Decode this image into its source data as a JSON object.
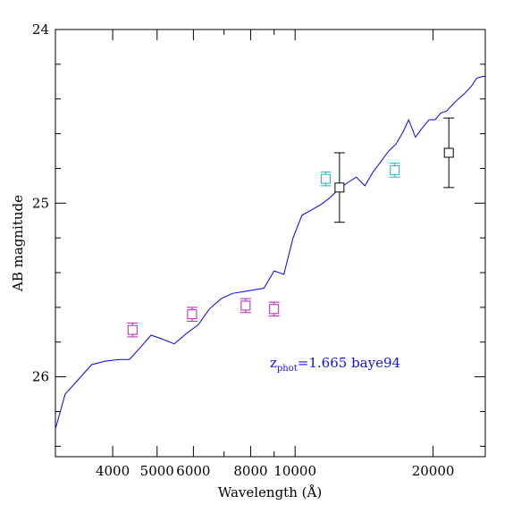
{
  "chart_data": {
    "type": "scatter",
    "title": "",
    "xlabel": "Wavelength (Å)",
    "ylabel": "AB magnitude",
    "xscale": "log",
    "xlim": [
      3000,
      26000
    ],
    "ylim": [
      26.46,
      24.0
    ],
    "y_inverted": true,
    "grid": false,
    "x_major_ticks": [
      4000,
      5000,
      6000,
      8000,
      10000,
      20000
    ],
    "x_tick_labels": [
      "4000",
      "5000",
      "6000",
      "8000",
      "10000",
      "20000"
    ],
    "x_minor_ticks": [
      3000,
      7000,
      9000
    ],
    "y_major_ticks": [
      24,
      25,
      26
    ],
    "y_tick_labels": [
      "24",
      "25",
      "26"
    ],
    "y_minor_ticks": [
      24.2,
      24.4,
      24.6,
      24.8,
      25.2,
      25.4,
      25.6,
      25.8,
      26.2,
      26.4
    ],
    "annotation": {
      "prefix": "z",
      "subscript": "phot",
      "text": "=1.665 baye94",
      "color": "#1010ee"
    },
    "series": [
      {
        "color": "#0000ff",
        "style": "line",
        "x": [
          3000,
          3150,
          3600,
          3850,
          4150,
          4350,
          4600,
          4850,
          5100,
          5450,
          5800,
          6150,
          6500,
          6900,
          7300,
          7700,
          8100,
          8550,
          9000,
          9450,
          9900,
          10350,
          10850,
          11350,
          11900,
          12450,
          13050,
          13600,
          14200,
          14800,
          15400,
          16000,
          16600,
          17200,
          17700,
          18300,
          18900,
          19600,
          20200,
          20800,
          21400,
          22100,
          22700,
          23400,
          24200,
          24900,
          25700,
          26000
        ],
        "y": [
          26.3,
          26.1,
          25.93,
          25.91,
          25.9,
          25.9,
          25.83,
          25.76,
          25.78,
          25.81,
          25.75,
          25.7,
          25.61,
          25.55,
          25.52,
          25.51,
          25.5,
          25.49,
          25.39,
          25.41,
          25.2,
          25.07,
          25.04,
          25.01,
          24.97,
          24.92,
          24.88,
          24.85,
          24.9,
          24.82,
          24.76,
          24.7,
          24.66,
          24.59,
          24.52,
          24.62,
          24.57,
          24.52,
          24.52,
          24.48,
          24.47,
          24.43,
          24.4,
          24.37,
          24.33,
          24.28,
          24.27,
          24.27
        ]
      },
      {
        "color": "#bb20bb",
        "style": "points",
        "marker": "open-square",
        "x": [
          4420,
          5960,
          7800,
          9000
        ],
        "y": [
          25.73,
          25.64,
          25.59,
          25.61
        ],
        "yerr": [
          0.04,
          0.04,
          0.04,
          0.04
        ]
      },
      {
        "color": "#20b0b8",
        "style": "points",
        "marker": "open-square",
        "x": [
          11670,
          16500
        ],
        "y": [
          24.86,
          24.81
        ],
        "yerr": [
          0.04,
          0.04
        ]
      },
      {
        "color": "#000000",
        "style": "points",
        "marker": "open-square",
        "x": [
          12500,
          21650
        ],
        "y": [
          24.91,
          24.71
        ],
        "yerr": [
          0.2,
          0.2
        ]
      }
    ]
  }
}
